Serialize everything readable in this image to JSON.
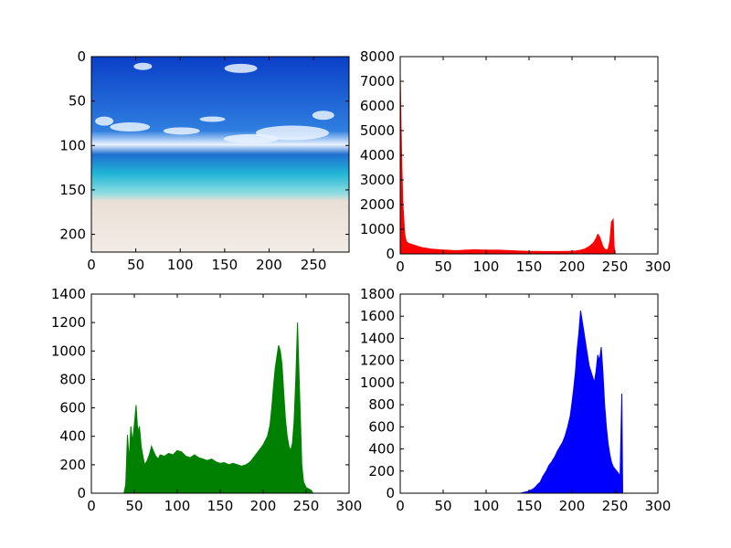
{
  "chart_data": [
    {
      "type": "image",
      "panel": "top-left",
      "description_visible": "beach photo",
      "xlim": [
        0,
        290
      ],
      "ylim": [
        220,
        0
      ],
      "xticks": [
        0,
        50,
        100,
        150,
        200,
        250
      ],
      "yticks": [
        0,
        50,
        100,
        150,
        200
      ],
      "colors": {
        "sky_top": "#0a3fc8",
        "sky_mid": "#2f7fe0",
        "cloud": "#eaf3ff",
        "horizon": "#1f6fd0",
        "water": "#21b6d6",
        "shallow": "#8fdde0",
        "sand": "#eadfd6",
        "sand_bottom": "#f2ece6"
      }
    },
    {
      "type": "bar",
      "panel": "top-right",
      "color": "#ff0000",
      "xlim": [
        0,
        300
      ],
      "ylim": [
        0,
        8000
      ],
      "xticks": [
        0,
        50,
        100,
        150,
        200,
        250,
        300
      ],
      "yticks": [
        0,
        1000,
        2000,
        3000,
        4000,
        5000,
        6000,
        7000,
        8000
      ],
      "points": [
        [
          0,
          7300
        ],
        [
          1,
          5200
        ],
        [
          2,
          3400
        ],
        [
          3,
          2100
        ],
        [
          4,
          1500
        ],
        [
          5,
          900
        ],
        [
          6,
          650
        ],
        [
          7,
          520
        ],
        [
          8,
          470
        ],
        [
          9,
          450
        ],
        [
          10,
          430
        ],
        [
          12,
          400
        ],
        [
          15,
          370
        ],
        [
          18,
          340
        ],
        [
          20,
          310
        ],
        [
          25,
          260
        ],
        [
          30,
          230
        ],
        [
          35,
          200
        ],
        [
          40,
          185
        ],
        [
          45,
          170
        ],
        [
          50,
          160
        ],
        [
          55,
          150
        ],
        [
          60,
          140
        ],
        [
          65,
          135
        ],
        [
          70,
          140
        ],
        [
          75,
          150
        ],
        [
          80,
          160
        ],
        [
          85,
          165
        ],
        [
          90,
          165
        ],
        [
          95,
          160
        ],
        [
          100,
          155
        ],
        [
          105,
          150
        ],
        [
          110,
          150
        ],
        [
          115,
          150
        ],
        [
          120,
          145
        ],
        [
          125,
          140
        ],
        [
          130,
          130
        ],
        [
          135,
          120
        ],
        [
          140,
          115
        ],
        [
          145,
          110
        ],
        [
          150,
          105
        ],
        [
          155,
          100
        ],
        [
          160,
          100
        ],
        [
          165,
          95
        ],
        [
          170,
          95
        ],
        [
          175,
          95
        ],
        [
          180,
          95
        ],
        [
          185,
          95
        ],
        [
          190,
          100
        ],
        [
          195,
          105
        ],
        [
          200,
          110
        ],
        [
          205,
          120
        ],
        [
          210,
          150
        ],
        [
          215,
          200
        ],
        [
          220,
          300
        ],
        [
          225,
          450
        ],
        [
          228,
          620
        ],
        [
          230,
          800
        ],
        [
          232,
          700
        ],
        [
          234,
          500
        ],
        [
          236,
          300
        ],
        [
          238,
          200
        ],
        [
          240,
          150
        ],
        [
          242,
          200
        ],
        [
          244,
          500
        ],
        [
          246,
          1300
        ],
        [
          248,
          1400
        ],
        [
          249,
          300
        ],
        [
          250,
          0
        ]
      ]
    },
    {
      "type": "bar",
      "panel": "bottom-left",
      "color": "#008000",
      "xlim": [
        0,
        300
      ],
      "ylim": [
        0,
        1400
      ],
      "xticks": [
        0,
        50,
        100,
        150,
        200,
        250,
        300
      ],
      "yticks": [
        0,
        200,
        400,
        600,
        800,
        1000,
        1200,
        1400
      ],
      "points": [
        [
          38,
          0
        ],
        [
          40,
          60
        ],
        [
          42,
          410
        ],
        [
          44,
          230
        ],
        [
          46,
          470
        ],
        [
          48,
          360
        ],
        [
          50,
          480
        ],
        [
          52,
          620
        ],
        [
          54,
          430
        ],
        [
          56,
          470
        ],
        [
          58,
          330
        ],
        [
          60,
          260
        ],
        [
          62,
          200
        ],
        [
          65,
          230
        ],
        [
          68,
          280
        ],
        [
          70,
          330
        ],
        [
          72,
          300
        ],
        [
          75,
          260
        ],
        [
          78,
          240
        ],
        [
          80,
          270
        ],
        [
          85,
          260
        ],
        [
          90,
          280
        ],
        [
          95,
          270
        ],
        [
          100,
          300
        ],
        [
          105,
          290
        ],
        [
          110,
          260
        ],
        [
          115,
          250
        ],
        [
          120,
          270
        ],
        [
          125,
          250
        ],
        [
          130,
          240
        ],
        [
          135,
          230
        ],
        [
          140,
          240
        ],
        [
          145,
          220
        ],
        [
          150,
          210
        ],
        [
          155,
          215
        ],
        [
          160,
          200
        ],
        [
          165,
          210
        ],
        [
          170,
          200
        ],
        [
          175,
          190
        ],
        [
          180,
          200
        ],
        [
          185,
          220
        ],
        [
          190,
          260
        ],
        [
          195,
          300
        ],
        [
          200,
          340
        ],
        [
          205,
          400
        ],
        [
          208,
          480
        ],
        [
          210,
          600
        ],
        [
          212,
          750
        ],
        [
          214,
          880
        ],
        [
          216,
          960
        ],
        [
          218,
          1040
        ],
        [
          220,
          1000
        ],
        [
          222,
          900
        ],
        [
          224,
          700
        ],
        [
          226,
          520
        ],
        [
          228,
          400
        ],
        [
          230,
          330
        ],
        [
          232,
          300
        ],
        [
          234,
          350
        ],
        [
          236,
          500
        ],
        [
          238,
          800
        ],
        [
          240,
          1200
        ],
        [
          241,
          1000
        ],
        [
          243,
          600
        ],
        [
          245,
          200
        ],
        [
          247,
          80
        ],
        [
          250,
          40
        ],
        [
          253,
          30
        ],
        [
          256,
          20
        ],
        [
          258,
          0
        ]
      ]
    },
    {
      "type": "bar",
      "panel": "bottom-right",
      "color": "#0000ff",
      "xlim": [
        0,
        300
      ],
      "ylim": [
        0,
        1800
      ],
      "xticks": [
        0,
        50,
        100,
        150,
        200,
        250,
        300
      ],
      "yticks": [
        0,
        200,
        400,
        600,
        800,
        1000,
        1200,
        1400,
        1600,
        1800
      ],
      "points": [
        [
          0,
          0
        ],
        [
          140,
          0
        ],
        [
          145,
          10
        ],
        [
          150,
          20
        ],
        [
          155,
          40
        ],
        [
          158,
          60
        ],
        [
          160,
          80
        ],
        [
          163,
          100
        ],
        [
          166,
          150
        ],
        [
          170,
          200
        ],
        [
          173,
          250
        ],
        [
          176,
          280
        ],
        [
          180,
          330
        ],
        [
          183,
          380
        ],
        [
          186,
          420
        ],
        [
          189,
          460
        ],
        [
          192,
          520
        ],
        [
          195,
          600
        ],
        [
          198,
          700
        ],
        [
          200,
          820
        ],
        [
          202,
          950
        ],
        [
          204,
          1100
        ],
        [
          206,
          1300
        ],
        [
          208,
          1450
        ],
        [
          210,
          1650
        ],
        [
          212,
          1550
        ],
        [
          214,
          1450
        ],
        [
          216,
          1350
        ],
        [
          218,
          1250
        ],
        [
          220,
          1150
        ],
        [
          222,
          1100
        ],
        [
          224,
          1050
        ],
        [
          226,
          1000
        ],
        [
          228,
          1100
        ],
        [
          230,
          1250
        ],
        [
          232,
          1200
        ],
        [
          234,
          1320
        ],
        [
          236,
          1100
        ],
        [
          238,
          800
        ],
        [
          240,
          600
        ],
        [
          242,
          450
        ],
        [
          244,
          350
        ],
        [
          246,
          280
        ],
        [
          248,
          240
        ],
        [
          250,
          220
        ],
        [
          252,
          200
        ],
        [
          254,
          180
        ],
        [
          256,
          150
        ],
        [
          258,
          900
        ],
        [
          259,
          0
        ]
      ]
    }
  ]
}
